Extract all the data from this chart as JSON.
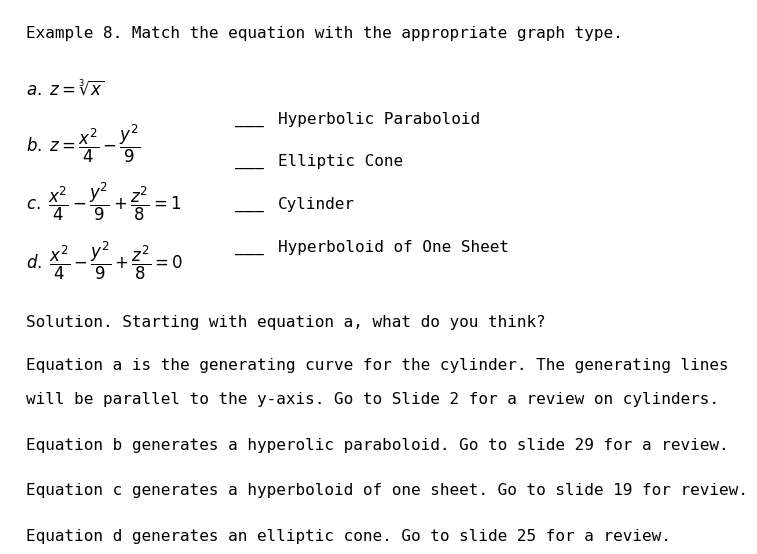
{
  "title": "Example 8. Match the equation with the appropriate graph type.",
  "eq_a": "$a.\\;z = \\sqrt[3]{x}$",
  "eq_b": "$b.\\;z = \\dfrac{x^2}{4} - \\dfrac{y^2}{9}$",
  "eq_c": "$c.\\;\\dfrac{x^2}{4} - \\dfrac{y^2}{9} + \\dfrac{z^2}{8} = 1$",
  "eq_d": "$d.\\;\\dfrac{x^2}{4} - \\dfrac{y^2}{9} + \\dfrac{z^2}{8} = 0$",
  "labels": [
    "Hyperbolic Paraboloid",
    "Elliptic Cone",
    "Cylinder",
    "Hyperboloid of One Sheet"
  ],
  "solution_title": "Solution. Starting with equation a, what do you think?",
  "solution_lines": [
    "Equation a is the generating curve for the cylinder. The generating lines",
    "will be parallel to the y-axis. Go to Slide 2 for a review on cylinders.",
    "Equation b generates a hyperolic paraboloid. Go to slide 29 for a review.",
    "Equation c generates a hyperboloid of one sheet. Go to slide 19 for review.",
    "Equation d generates an elliptic cone. Go to slide 25 for a review."
  ],
  "bg_color": "#ffffff",
  "text_color": "#000000",
  "font_size_title": 11.5,
  "font_size_eq": 12,
  "font_size_label": 11.5,
  "font_size_solution": 11.5
}
